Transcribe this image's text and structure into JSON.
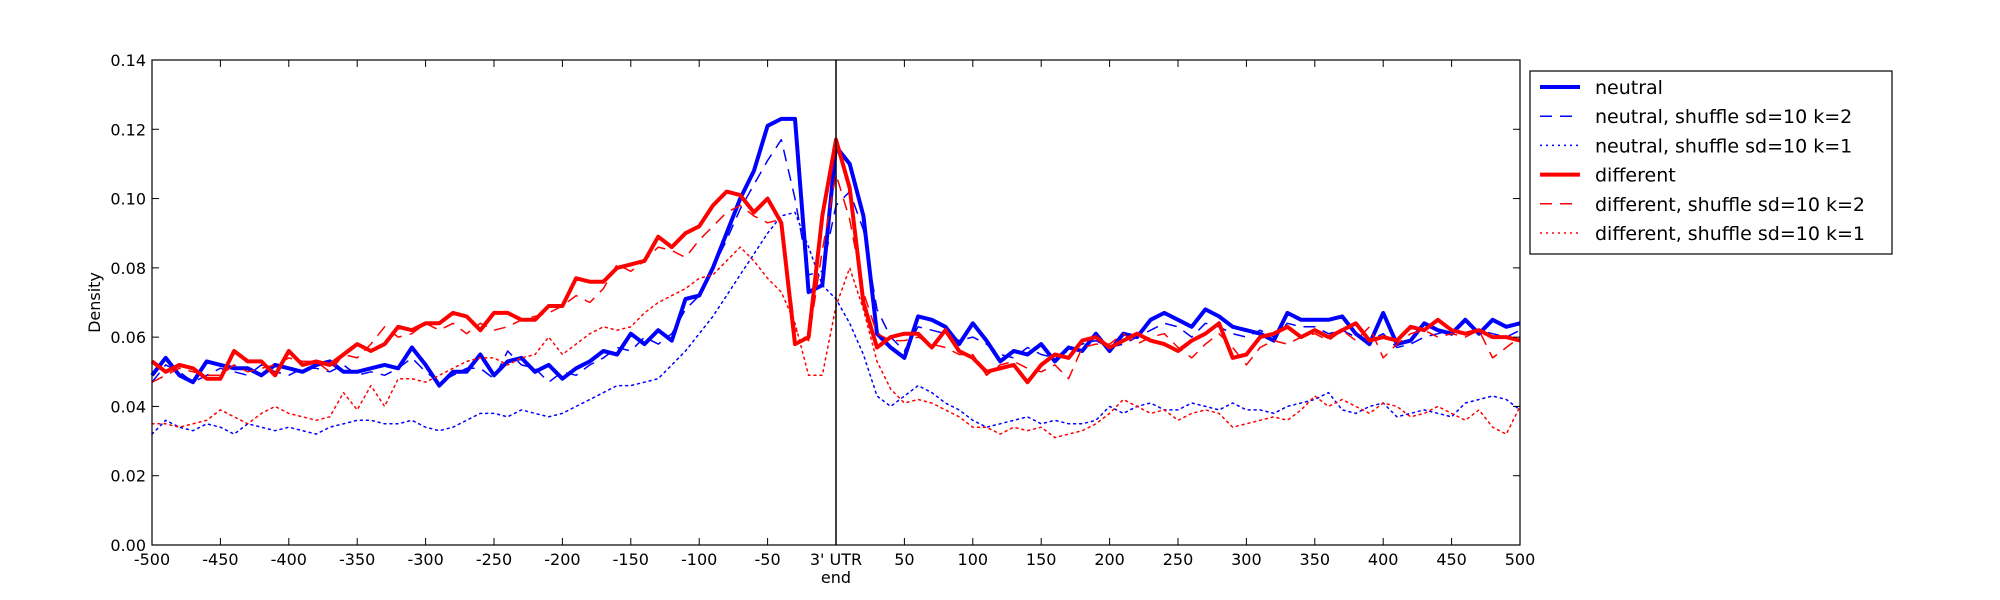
{
  "chart_data": {
    "type": "line",
    "ylabel": "Density",
    "xlabel": "end",
    "xlim": [
      -500,
      500
    ],
    "ylim": [
      0,
      0.14
    ],
    "x_ticks": [
      -500,
      -450,
      -400,
      -350,
      -300,
      -250,
      -200,
      -150,
      -100,
      -50,
      0,
      50,
      100,
      150,
      200,
      250,
      300,
      350,
      400,
      450,
      500
    ],
    "x_tick_labels": [
      "-500",
      "-450",
      "-400",
      "-350",
      "-300",
      "-250",
      "-200",
      "-150",
      "-100",
      "-50",
      "3' UTR",
      "50",
      "100",
      "150",
      "200",
      "250",
      "300",
      "350",
      "400",
      "450",
      "500"
    ],
    "y_ticks": [
      0.0,
      0.02,
      0.04,
      0.06,
      0.08,
      0.1,
      0.12,
      0.14
    ],
    "y_tick_labels": [
      "0.00",
      "0.02",
      "0.04",
      "0.06",
      "0.08",
      "0.10",
      "0.12",
      "0.14"
    ],
    "vertical_line_at": 0,
    "grid": false,
    "legend_position": "outside-top-right",
    "x": [
      -500,
      -490,
      -480,
      -470,
      -460,
      -450,
      -440,
      -430,
      -420,
      -410,
      -400,
      -390,
      -380,
      -370,
      -360,
      -350,
      -340,
      -330,
      -320,
      -310,
      -300,
      -290,
      -280,
      -270,
      -260,
      -250,
      -240,
      -230,
      -220,
      -210,
      -200,
      -190,
      -180,
      -170,
      -160,
      -150,
      -140,
      -130,
      -120,
      -110,
      -100,
      -90,
      -80,
      -70,
      -60,
      -50,
      -40,
      -30,
      -20,
      -10,
      0,
      10,
      20,
      30,
      40,
      50,
      60,
      70,
      80,
      90,
      100,
      110,
      120,
      130,
      140,
      150,
      160,
      170,
      180,
      190,
      200,
      210,
      220,
      230,
      240,
      250,
      260,
      270,
      280,
      290,
      300,
      310,
      320,
      330,
      340,
      350,
      360,
      370,
      380,
      390,
      400,
      410,
      420,
      430,
      440,
      450,
      460,
      470,
      480,
      490,
      500
    ],
    "series": [
      {
        "name": "neutral",
        "color": "#0000ff",
        "style": "solid",
        "width": 4,
        "values": [
          0.049,
          0.054,
          0.049,
          0.047,
          0.053,
          0.052,
          0.051,
          0.051,
          0.049,
          0.052,
          0.051,
          0.05,
          0.052,
          0.053,
          0.05,
          0.05,
          0.051,
          0.052,
          0.051,
          0.057,
          0.052,
          0.046,
          0.05,
          0.05,
          0.055,
          0.049,
          0.053,
          0.054,
          0.05,
          0.052,
          0.048,
          0.051,
          0.053,
          0.056,
          0.055,
          0.061,
          0.058,
          0.062,
          0.059,
          0.071,
          0.072,
          0.08,
          0.09,
          0.1,
          0.108,
          0.121,
          0.123,
          0.123,
          0.073,
          0.075,
          0.115,
          0.11,
          0.095,
          0.061,
          0.057,
          0.054,
          0.066,
          0.065,
          0.063,
          0.058,
          0.064,
          0.059,
          0.053,
          0.056,
          0.055,
          0.058,
          0.053,
          0.057,
          0.056,
          0.061,
          0.056,
          0.061,
          0.06,
          0.065,
          0.067,
          0.065,
          0.063,
          0.068,
          0.066,
          0.063,
          0.062,
          0.061,
          0.059,
          0.067,
          0.065,
          0.065,
          0.065,
          0.066,
          0.061,
          0.058,
          0.067,
          0.058,
          0.059,
          0.064,
          0.062,
          0.061,
          0.065,
          0.061,
          0.065,
          0.063,
          0.064
        ]
      },
      {
        "name": "neutral, shuffle sd=10 k=2",
        "color": "#0000ff",
        "style": "dashed",
        "width": 1.5,
        "values": [
          0.047,
          0.052,
          0.05,
          0.047,
          0.049,
          0.051,
          0.05,
          0.049,
          0.052,
          0.05,
          0.049,
          0.051,
          0.051,
          0.05,
          0.052,
          0.049,
          0.05,
          0.049,
          0.051,
          0.054,
          0.05,
          0.047,
          0.049,
          0.051,
          0.051,
          0.048,
          0.056,
          0.052,
          0.051,
          0.047,
          0.05,
          0.049,
          0.052,
          0.054,
          0.057,
          0.056,
          0.06,
          0.058,
          0.061,
          0.068,
          0.072,
          0.08,
          0.088,
          0.097,
          0.104,
          0.111,
          0.117,
          0.1,
          0.078,
          0.079,
          0.098,
          0.102,
          0.091,
          0.068,
          0.06,
          0.056,
          0.063,
          0.062,
          0.061,
          0.059,
          0.06,
          0.058,
          0.055,
          0.054,
          0.057,
          0.055,
          0.054,
          0.056,
          0.058,
          0.059,
          0.057,
          0.058,
          0.06,
          0.062,
          0.064,
          0.063,
          0.06,
          0.064,
          0.063,
          0.061,
          0.06,
          0.062,
          0.06,
          0.064,
          0.063,
          0.063,
          0.061,
          0.062,
          0.06,
          0.059,
          0.061,
          0.057,
          0.058,
          0.06,
          0.061,
          0.062,
          0.061,
          0.062,
          0.061,
          0.06,
          0.062
        ]
      },
      {
        "name": "neutral, shuffle sd=10 k=1",
        "color": "#0000ff",
        "style": "dotted",
        "width": 1.5,
        "values": [
          0.032,
          0.036,
          0.034,
          0.033,
          0.035,
          0.034,
          0.032,
          0.035,
          0.034,
          0.033,
          0.034,
          0.033,
          0.032,
          0.034,
          0.035,
          0.036,
          0.036,
          0.035,
          0.035,
          0.036,
          0.034,
          0.033,
          0.034,
          0.036,
          0.038,
          0.038,
          0.037,
          0.039,
          0.038,
          0.037,
          0.038,
          0.04,
          0.042,
          0.044,
          0.046,
          0.046,
          0.047,
          0.048,
          0.052,
          0.056,
          0.061,
          0.066,
          0.072,
          0.078,
          0.084,
          0.09,
          0.095,
          0.096,
          0.086,
          0.075,
          0.071,
          0.064,
          0.055,
          0.043,
          0.04,
          0.043,
          0.046,
          0.044,
          0.041,
          0.039,
          0.036,
          0.034,
          0.035,
          0.036,
          0.037,
          0.035,
          0.036,
          0.035,
          0.035,
          0.036,
          0.04,
          0.038,
          0.04,
          0.041,
          0.039,
          0.039,
          0.041,
          0.04,
          0.039,
          0.041,
          0.039,
          0.039,
          0.038,
          0.04,
          0.041,
          0.042,
          0.044,
          0.039,
          0.038,
          0.04,
          0.041,
          0.037,
          0.038,
          0.039,
          0.038,
          0.037,
          0.041,
          0.042,
          0.043,
          0.042,
          0.039
        ]
      },
      {
        "name": "different",
        "color": "#ff0000",
        "style": "solid",
        "width": 4,
        "values": [
          0.053,
          0.05,
          0.052,
          0.051,
          0.048,
          0.048,
          0.056,
          0.053,
          0.053,
          0.049,
          0.056,
          0.052,
          0.053,
          0.052,
          0.055,
          0.058,
          0.056,
          0.058,
          0.063,
          0.062,
          0.064,
          0.064,
          0.067,
          0.066,
          0.062,
          0.067,
          0.067,
          0.065,
          0.065,
          0.069,
          0.069,
          0.077,
          0.076,
          0.076,
          0.08,
          0.081,
          0.082,
          0.089,
          0.086,
          0.09,
          0.092,
          0.098,
          0.102,
          0.101,
          0.096,
          0.1,
          0.093,
          0.058,
          0.06,
          0.095,
          0.117,
          0.103,
          0.07,
          0.057,
          0.06,
          0.061,
          0.061,
          0.057,
          0.062,
          0.056,
          0.054,
          0.05,
          0.051,
          0.052,
          0.047,
          0.052,
          0.055,
          0.054,
          0.059,
          0.06,
          0.057,
          0.059,
          0.061,
          0.059,
          0.058,
          0.056,
          0.059,
          0.061,
          0.064,
          0.054,
          0.055,
          0.06,
          0.061,
          0.063,
          0.06,
          0.062,
          0.06,
          0.062,
          0.064,
          0.059,
          0.06,
          0.059,
          0.063,
          0.062,
          0.065,
          0.062,
          0.061,
          0.062,
          0.06,
          0.06,
          0.059
        ]
      },
      {
        "name": "different, shuffle sd=10 k=2",
        "color": "#ff0000",
        "style": "dashed",
        "width": 1.5,
        "values": [
          0.047,
          0.049,
          0.051,
          0.05,
          0.049,
          0.049,
          0.052,
          0.05,
          0.051,
          0.052,
          0.054,
          0.053,
          0.053,
          0.05,
          0.055,
          0.054,
          0.058,
          0.063,
          0.06,
          0.061,
          0.064,
          0.062,
          0.064,
          0.061,
          0.064,
          0.062,
          0.063,
          0.065,
          0.066,
          0.067,
          0.069,
          0.072,
          0.07,
          0.074,
          0.081,
          0.079,
          0.082,
          0.086,
          0.085,
          0.083,
          0.088,
          0.092,
          0.096,
          0.098,
          0.095,
          0.093,
          0.094,
          0.062,
          0.059,
          0.085,
          0.107,
          0.094,
          0.073,
          0.061,
          0.059,
          0.059,
          0.06,
          0.058,
          0.057,
          0.055,
          0.055,
          0.049,
          0.052,
          0.053,
          0.051,
          0.05,
          0.052,
          0.048,
          0.057,
          0.058,
          0.058,
          0.061,
          0.058,
          0.06,
          0.061,
          0.057,
          0.054,
          0.058,
          0.061,
          0.057,
          0.052,
          0.057,
          0.059,
          0.058,
          0.06,
          0.061,
          0.059,
          0.062,
          0.059,
          0.063,
          0.054,
          0.058,
          0.061,
          0.062,
          0.06,
          0.061,
          0.06,
          0.062,
          0.054,
          0.057,
          0.06
        ]
      },
      {
        "name": "different, shuffle sd=10 k=1",
        "color": "#ff0000",
        "style": "dotted",
        "width": 1.5,
        "values": [
          0.035,
          0.035,
          0.034,
          0.035,
          0.036,
          0.039,
          0.037,
          0.035,
          0.038,
          0.04,
          0.038,
          0.037,
          0.036,
          0.037,
          0.044,
          0.039,
          0.046,
          0.04,
          0.048,
          0.048,
          0.047,
          0.049,
          0.051,
          0.053,
          0.054,
          0.054,
          0.052,
          0.054,
          0.055,
          0.06,
          0.055,
          0.058,
          0.061,
          0.063,
          0.062,
          0.063,
          0.067,
          0.07,
          0.072,
          0.074,
          0.077,
          0.078,
          0.082,
          0.086,
          0.082,
          0.077,
          0.073,
          0.064,
          0.049,
          0.049,
          0.069,
          0.08,
          0.068,
          0.053,
          0.045,
          0.041,
          0.042,
          0.041,
          0.039,
          0.037,
          0.034,
          0.034,
          0.032,
          0.034,
          0.033,
          0.034,
          0.031,
          0.032,
          0.033,
          0.035,
          0.038,
          0.042,
          0.04,
          0.038,
          0.039,
          0.036,
          0.038,
          0.039,
          0.038,
          0.034,
          0.035,
          0.036,
          0.037,
          0.036,
          0.039,
          0.043,
          0.04,
          0.042,
          0.04,
          0.038,
          0.041,
          0.04,
          0.037,
          0.038,
          0.04,
          0.038,
          0.036,
          0.039,
          0.034,
          0.032,
          0.04
        ]
      }
    ]
  }
}
